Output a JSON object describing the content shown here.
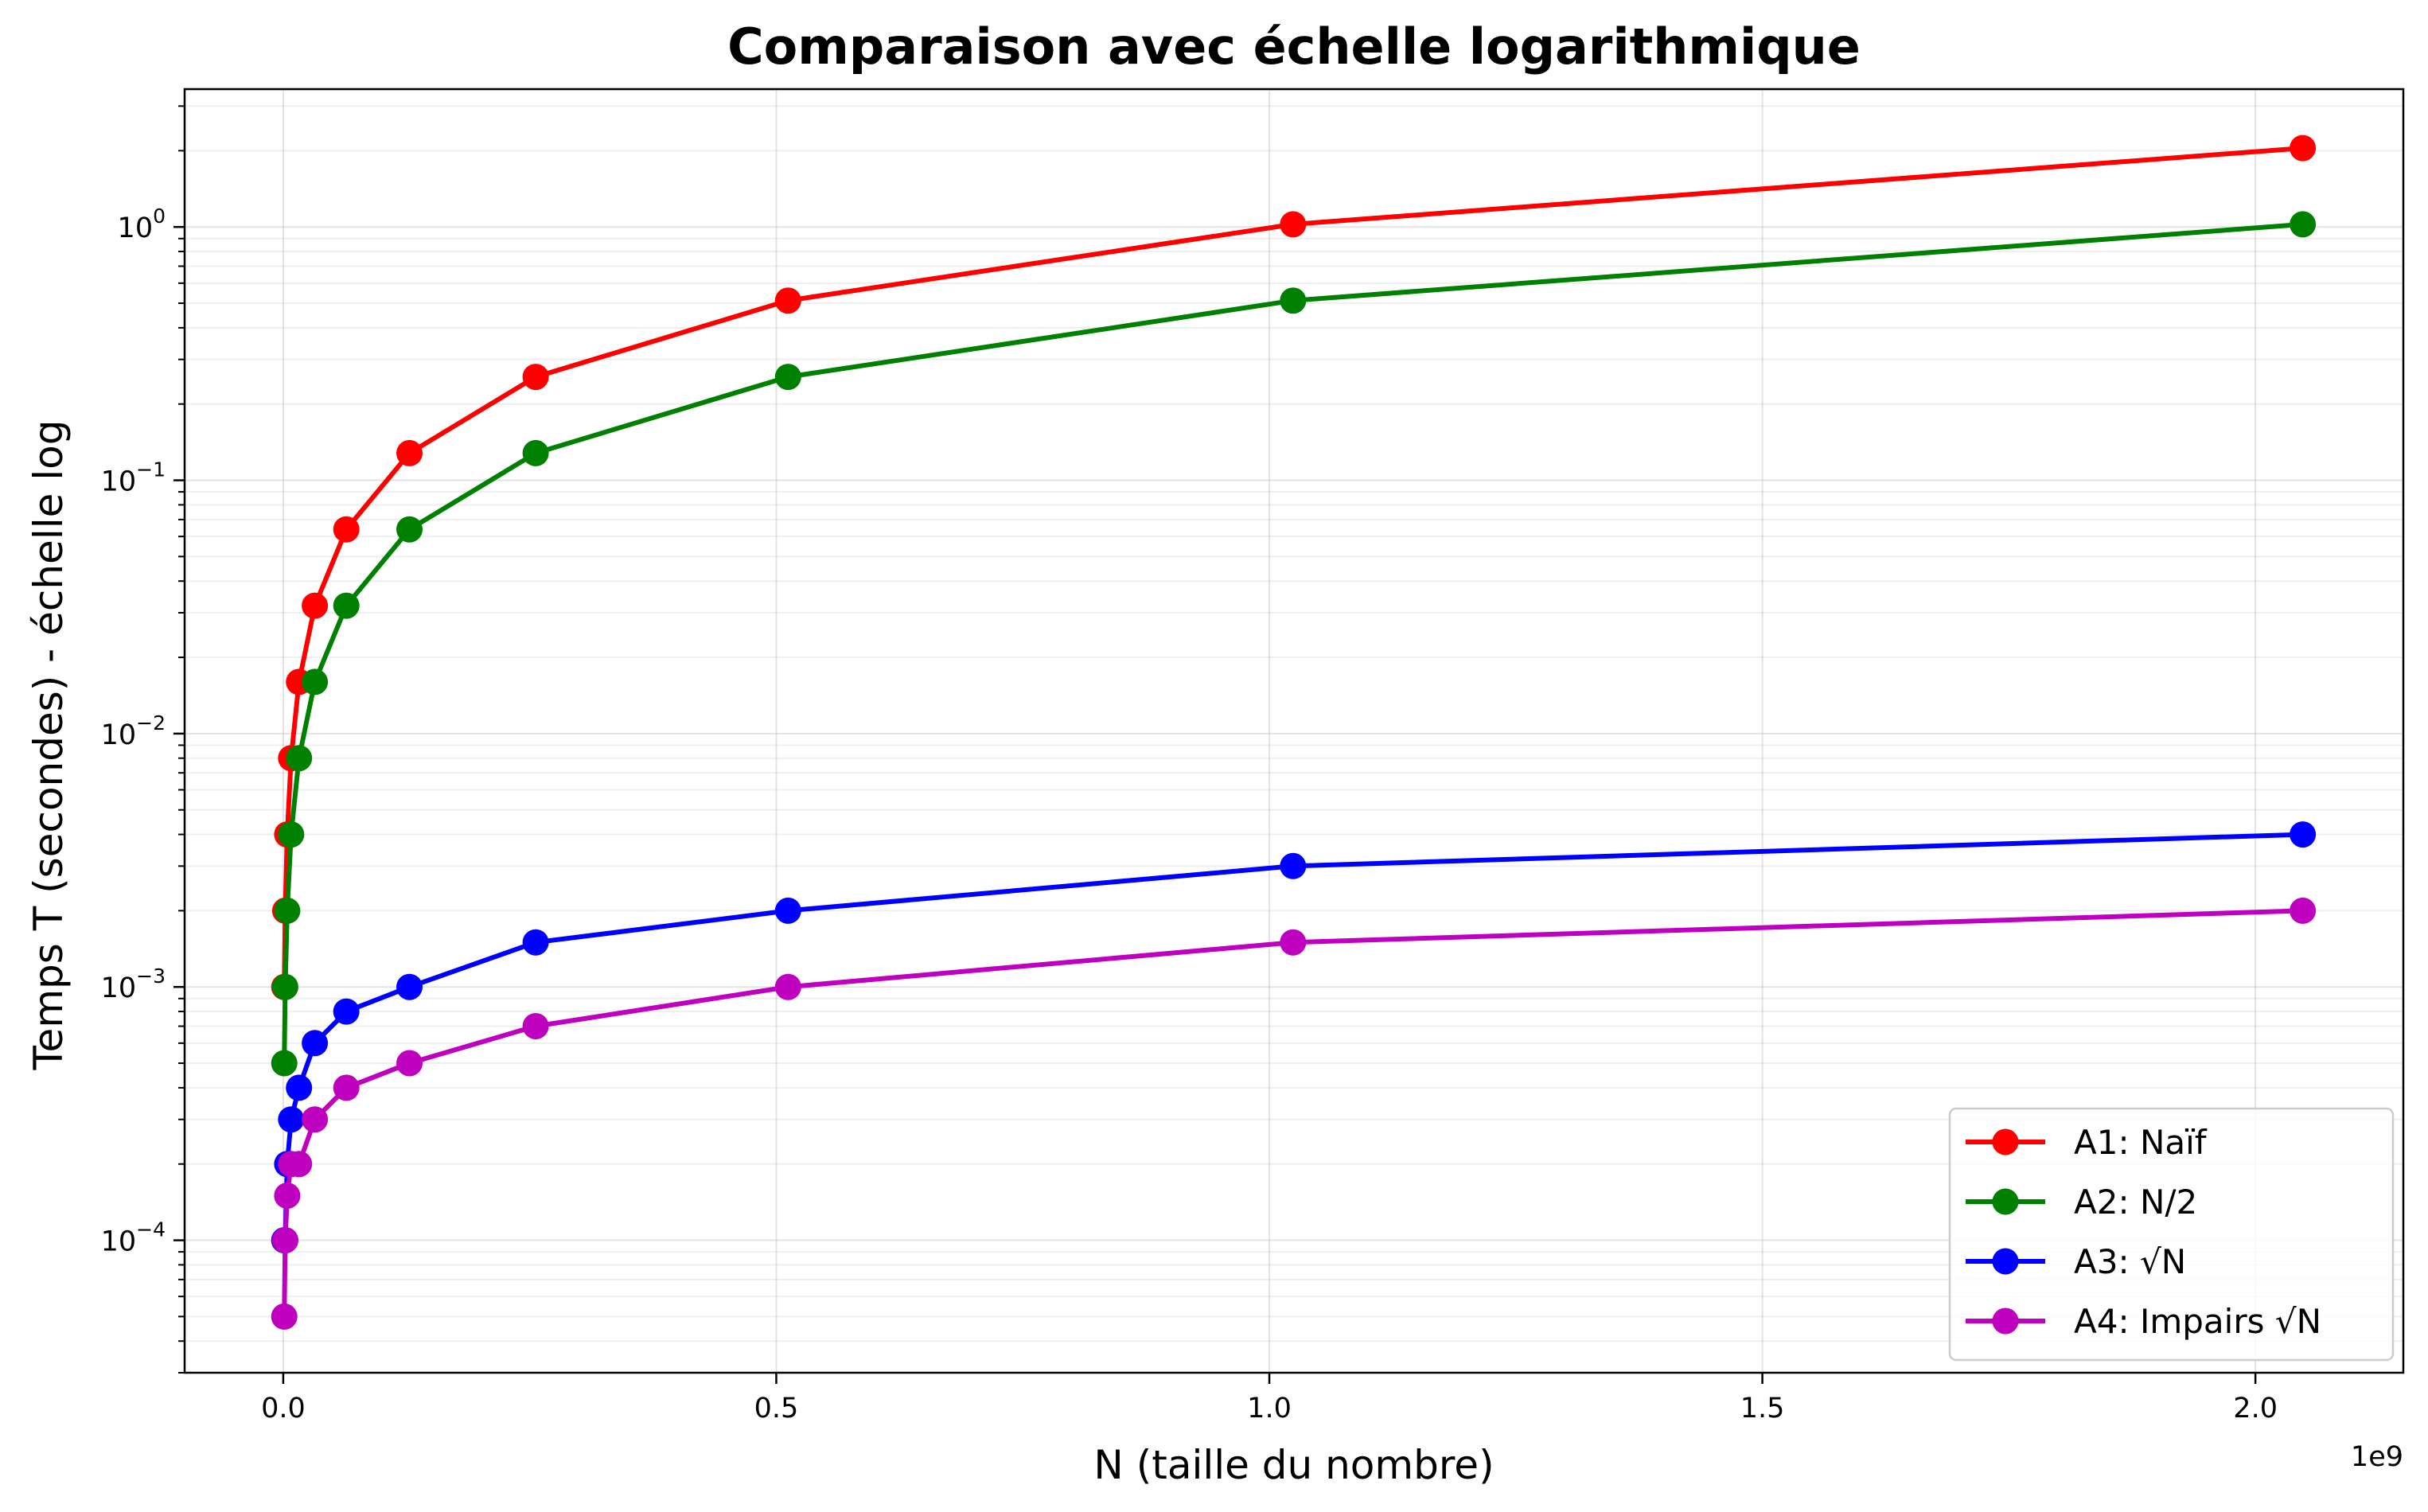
{
  "chart_data": {
    "type": "line",
    "title": "Comparaison avec échelle logarithmique",
    "xlabel": "N (taille du nombre)",
    "ylabel": "Temps T (secondes) - échelle log",
    "x_offset_label": "1e9",
    "x_scale": "linear",
    "y_scale": "log",
    "xlim": [
      -100000000.0,
      2150000000.0
    ],
    "ylim": [
      3e-05,
      3.5
    ],
    "x_ticks": [
      0,
      500000000.0,
      1000000000.0,
      1500000000.0,
      2000000000.0
    ],
    "x_tick_labels": [
      "0.0",
      "0.5",
      "1.0",
      "1.5",
      "2.0"
    ],
    "y_ticks": [
      0.0001,
      0.001,
      0.01,
      0.1,
      1
    ],
    "y_tick_labels": [
      {
        "base": "10",
        "exp": "−4"
      },
      {
        "base": "10",
        "exp": "−3"
      },
      {
        "base": "10",
        "exp": "−2"
      },
      {
        "base": "10",
        "exp": "−1"
      },
      {
        "base": "10",
        "exp": "0"
      }
    ],
    "grid": true,
    "legend_position": "lower-right",
    "x": [
      1000000,
      2000000,
      4000000,
      8000000,
      16000000,
      32000000,
      64000000,
      128000000,
      256000000,
      512000000,
      1024000000,
      2048000000
    ],
    "series": [
      {
        "name": "A1: Naïf",
        "color": "#ff0000",
        "values": [
          0.001,
          0.002,
          0.004,
          0.008,
          0.016,
          0.032,
          0.064,
          0.128,
          0.256,
          0.512,
          1.024,
          2.048
        ]
      },
      {
        "name": "A2: N/2",
        "color": "#008000",
        "values": [
          0.0005,
          0.001,
          0.002,
          0.004,
          0.008,
          0.016,
          0.032,
          0.064,
          0.128,
          0.256,
          0.512,
          1.024
        ]
      },
      {
        "name": "A3: √N",
        "color": "#0000ff",
        "values": [
          0.0001,
          0.0001,
          0.0002,
          0.0003,
          0.0004,
          0.0006,
          0.0008,
          0.001,
          0.0015,
          0.002,
          0.003,
          0.004
        ]
      },
      {
        "name": "A4: Impairs √N",
        "color": "#bf00bf",
        "values": [
          5e-05,
          0.0001,
          0.00015,
          0.0002,
          0.0002,
          0.0003,
          0.0004,
          0.0005,
          0.0007,
          0.001,
          0.0015,
          0.002
        ]
      }
    ]
  }
}
